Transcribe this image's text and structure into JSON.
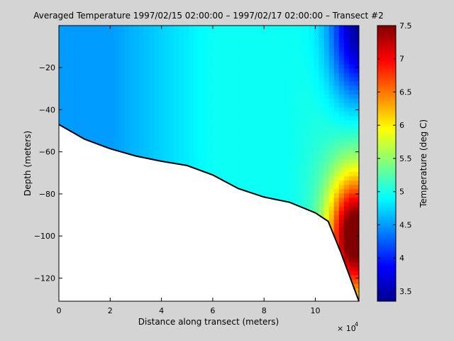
{
  "chart_data": {
    "type": "heatmap",
    "title": "Averaged Temperature  1997/02/15 02:00:00 – 1997/02/17 02:00:00 – Transect #2",
    "xlabel": "Distance along transect (meters)",
    "x_exponent_label": "× 10",
    "x_exponent_power": "4",
    "ylabel": "Depth (meters)",
    "xlim": [
      0,
      11.7
    ],
    "ylim": [
      -131,
      0
    ],
    "x_ticks": [
      0,
      2,
      4,
      6,
      8,
      10
    ],
    "x_tick_labels": [
      "0",
      "2",
      "4",
      "6",
      "8",
      "10"
    ],
    "y_ticks": [
      -20,
      -40,
      -60,
      -80,
      -100,
      -120
    ],
    "y_tick_labels": [
      "−20",
      "−40",
      "−60",
      "−80",
      "−100",
      "−120"
    ],
    "colorbar": {
      "label": "Temperature (deg C)",
      "clim": [
        3.35,
        7.5
      ],
      "ticks": [
        3.5,
        4,
        4.5,
        5,
        5.5,
        6,
        6.5,
        7,
        7.5
      ],
      "tick_labels": [
        "3.5",
        "4",
        "4.5",
        "5",
        "5.5",
        "6",
        "6.5",
        "7",
        "7.5"
      ],
      "colormap": "jet"
    },
    "bottom_profile": {
      "x": [
        0,
        1,
        2,
        3,
        4,
        5,
        6,
        7,
        8,
        9,
        10,
        10.5,
        11,
        11.7
      ],
      "depth": [
        -47,
        -54,
        -58.5,
        -62,
        -64.5,
        -66.5,
        -71,
        -77.5,
        -81.5,
        -84,
        -89,
        -93,
        -108,
        -131
      ]
    },
    "temperature_field_description": "Blue water near 4.4–4.6 C in the west; cyan 4.8–5.0 C eastward; warm core up to about 7.5 C near the bottom at x 10.5–11.7; cold surface water near 3.4 C in the upper east."
  }
}
